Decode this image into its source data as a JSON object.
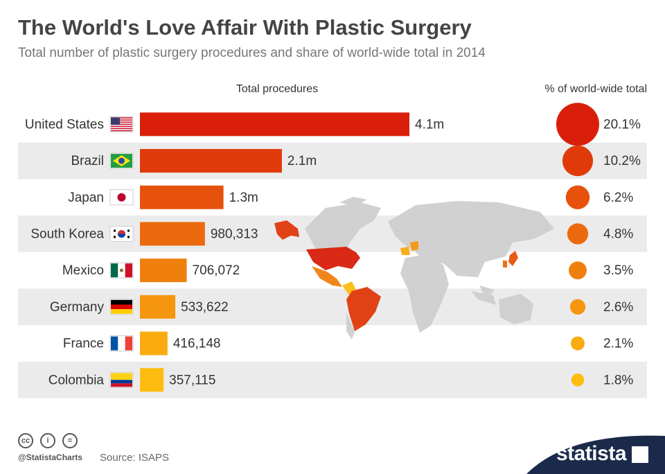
{
  "title": "The World's Love Affair With Plastic Surgery",
  "subtitle": "Total number of plastic surgery procedures and share of world-wide total in 2014",
  "chart_data": {
    "type": "bar",
    "orientation": "horizontal",
    "column_headers": [
      "Total procedures",
      "% of world-wide total"
    ],
    "categories": [
      "United States",
      "Brazil",
      "Japan",
      "South Korea",
      "Mexico",
      "Germany",
      "France",
      "Colombia"
    ],
    "values": [
      4064571,
      2141257,
      1260351,
      980313,
      706072,
      533622,
      416148,
      357115
    ],
    "value_labels": [
      "4.1m",
      "2.1m",
      "1.3m",
      "980,313",
      "706,072",
      "533,622",
      "416,148",
      "357,115"
    ],
    "shares": [
      20.1,
      10.2,
      6.2,
      4.8,
      3.5,
      2.6,
      2.1,
      1.8
    ],
    "share_labels": [
      "20.1%",
      "10.2%",
      "6.2%",
      "4.8%",
      "3.5%",
      "2.6%",
      "2.1%",
      "1.8%"
    ],
    "bar_colors": [
      "#d91f0a",
      "#e03a0b",
      "#e6520c",
      "#ec6a0d",
      "#f0800d",
      "#f5960e",
      "#f9ab0f",
      "#fdbd10"
    ],
    "flag_icons": [
      "us-flag-icon",
      "brazil-flag-icon",
      "japan-flag-icon",
      "south-korea-flag-icon",
      "mexico-flag-icon",
      "germany-flag-icon",
      "france-flag-icon",
      "colombia-flag-icon"
    ],
    "background_graphic": "world-map-icon",
    "grid": false,
    "legend": "none"
  },
  "footer": {
    "handle": "@StatistaCharts",
    "source": "Source: ISAPS",
    "brand": "statista",
    "license_icons": [
      "cc-icon",
      "by-icon",
      "nd-icon"
    ]
  }
}
